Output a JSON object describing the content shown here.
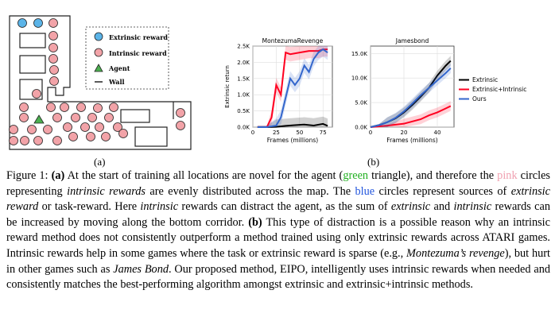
{
  "figure_a": {
    "legend": {
      "extrinsic_reward": "Extrinsic reward",
      "intrinsic_reward": "Intrinsic reward",
      "agent": "Agent",
      "wall": "Wall"
    },
    "colors": {
      "extrinsic": "#5bb4e8",
      "intrinsic": "#f2a3a8",
      "agent": "#4caf50",
      "wall": "#222222"
    },
    "label": "(a)"
  },
  "figure_b": {
    "label": "(b)",
    "legend": [
      "Extrinsic",
      "Extrinsic+Intrinsic",
      "Ours"
    ]
  },
  "chart_data": [
    {
      "type": "line",
      "title": "MontezumaRevenge",
      "xlabel": "Frames (millions)",
      "ylabel": "Extrinsic return",
      "xlim": [
        0,
        85
      ],
      "ylim": [
        0,
        2500
      ],
      "xticks": [
        0,
        25,
        50,
        75
      ],
      "yticks": [
        0,
        500,
        1000,
        1500,
        2000,
        2500
      ],
      "ytick_labels": [
        "0.0K",
        "0.5K",
        "1.0K",
        "1.5K",
        "2.0K",
        "2.5K"
      ],
      "series": [
        {
          "name": "Extrinsic",
          "color": "#000000",
          "x": [
            5,
            15,
            25,
            35,
            45,
            55,
            65,
            75,
            80
          ],
          "y": [
            0,
            0,
            10,
            40,
            60,
            80,
            50,
            100,
            40
          ]
        },
        {
          "name": "Extrinsic+Intrinsic",
          "color": "#ff0020",
          "x": [
            5,
            15,
            20,
            25,
            30,
            35,
            40,
            50,
            60,
            70,
            75,
            80
          ],
          "y": [
            0,
            0,
            300,
            1300,
            1000,
            2300,
            2250,
            2300,
            2350,
            2350,
            2400,
            2400
          ]
        },
        {
          "name": "Ours",
          "color": "#3366cc",
          "x": [
            5,
            15,
            25,
            30,
            35,
            40,
            45,
            50,
            55,
            60,
            65,
            70,
            75,
            80
          ],
          "y": [
            0,
            0,
            50,
            300,
            900,
            1500,
            1300,
            1500,
            1900,
            1700,
            2100,
            2300,
            2400,
            2300
          ]
        }
      ],
      "grid": true
    },
    {
      "type": "line",
      "title": "Jamesbond",
      "xlabel": "Frames (millions)",
      "xlim": [
        0,
        50
      ],
      "ylim": [
        0,
        16500
      ],
      "xticks": [
        0,
        20,
        40
      ],
      "yticks": [
        0,
        5000,
        10000,
        15000
      ],
      "ytick_labels": [
        "0.0K",
        "5.0K",
        "10.0K",
        "15.0K"
      ],
      "series": [
        {
          "name": "Extrinsic",
          "color": "#000000",
          "x": [
            0,
            5,
            10,
            15,
            20,
            25,
            30,
            35,
            40,
            45,
            48
          ],
          "y": [
            0,
            400,
            1000,
            1800,
            3000,
            4500,
            6200,
            8000,
            10500,
            12500,
            13500
          ]
        },
        {
          "name": "Extrinsic+Intrinsic",
          "color": "#ff0020",
          "x": [
            0,
            10,
            20,
            30,
            35,
            40,
            45,
            48
          ],
          "y": [
            0,
            300,
            700,
            1600,
            2400,
            3000,
            3800,
            4300
          ]
        },
        {
          "name": "Ours",
          "color": "#3366cc",
          "x": [
            0,
            5,
            10,
            15,
            20,
            25,
            30,
            35,
            40,
            45,
            48
          ],
          "y": [
            0,
            400,
            1000,
            1900,
            3200,
            4800,
            6500,
            8000,
            9500,
            11000,
            12000
          ]
        }
      ],
      "grid": true
    }
  ],
  "caption": {
    "prefix": "Figure 1: ",
    "a_marker": "(a)",
    "t1": " At the start of training all locations are novel for the agent (",
    "green_word": "green",
    "t2": " triangle), and therefore the ",
    "pink_word": "pink",
    "t3": " circles representing ",
    "intrinsic_rewards_em": "intrinsic rewards",
    "t4": " are evenly distributed across the map. The ",
    "blue_word": "blue",
    "t5": " circles represent sources of ",
    "extrinsic_reward_em": "extrinsic reward",
    "t6": " or task-reward. Here ",
    "intrinsic_em": "intrinsic",
    "t7": " rewards can distract the agent, as the sum of ",
    "extrinsic_em": "extrinsic",
    "t8": " and ",
    "intrinsic_em2": "intrinsic",
    "t9": " rewards can be increased by moving along the bottom corridor. ",
    "b_marker": "(b)",
    "t10": " This type of distraction is a possible reason why an intrinsic reward method does not consistently outperform a method trained using only extrinsic rewards across ATARI games. Intrinsic rewards help in some games where the task or extrinsic reward is sparse (e.g., ",
    "montezuma_em": "Montezuma’s revenge",
    "t11": "), but hurt in other games such as ",
    "jamesbond_em": "James Bond",
    "t12": ". Our proposed method, EIPO, intelligently uses intrinsic rewards when needed and consistently matches the best-performing algorithm amongst extrinsic and extrinsic+intrinsic methods."
  }
}
